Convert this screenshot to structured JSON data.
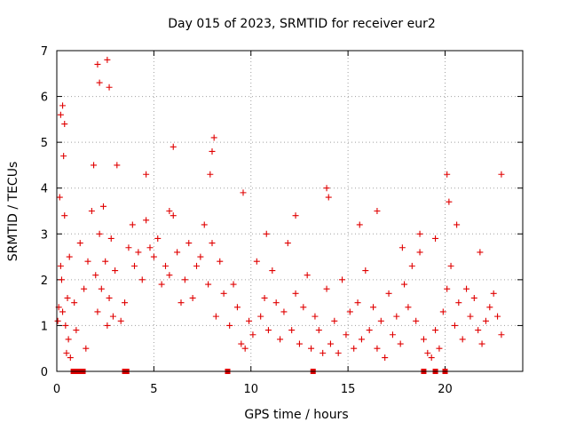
{
  "chart_data": {
    "type": "scatter",
    "title": "Day 015 of 2023, SRMTID for receiver eur2",
    "xlabel": "GPS time / hours",
    "ylabel": "SRMTID / TECUs",
    "xlim": [
      0,
      24
    ],
    "ylim": [
      0,
      7
    ],
    "x_ticks": [
      "0",
      "5",
      "10",
      "15",
      "20"
    ],
    "y_ticks": [
      "0",
      "1",
      "2",
      "3",
      "4",
      "5",
      "6",
      "7"
    ],
    "grid": true,
    "series_color": "#e00000",
    "series": [
      {
        "name": "SRMTID",
        "marker": "plus",
        "x": [
          0.05,
          0.1,
          0.15,
          0.2,
          0.25,
          0.3,
          0.35,
          0.4,
          0.45,
          0.5,
          0.55,
          0.6,
          0.65,
          0.7,
          0.9,
          1.0,
          1.2,
          1.4,
          1.5,
          1.6,
          1.8,
          2.0,
          2.1,
          2.2,
          2.3,
          2.4,
          2.5,
          2.6,
          2.7,
          2.8,
          2.9,
          3.0,
          3.3,
          3.5,
          3.7,
          3.9,
          4.0,
          4.2,
          4.4,
          4.6,
          4.8,
          5.0,
          5.2,
          5.4,
          5.6,
          5.8,
          6.0,
          6.2,
          6.4,
          6.6,
          6.8,
          7.0,
          7.2,
          7.4,
          7.6,
          7.8,
          8.0,
          8.2,
          8.4,
          8.6,
          8.9,
          9.1,
          9.3,
          9.5,
          9.7,
          9.9,
          10.1,
          10.3,
          10.5,
          10.7,
          10.9,
          11.1,
          11.3,
          11.5,
          11.7,
          11.9,
          12.1,
          12.3,
          12.5,
          12.7,
          12.9,
          13.1,
          13.3,
          13.5,
          13.7,
          13.9,
          14.1,
          14.3,
          14.5,
          14.7,
          14.9,
          15.1,
          15.3,
          15.5,
          15.7,
          15.9,
          16.1,
          16.3,
          16.5,
          16.7,
          16.9,
          17.1,
          17.3,
          17.5,
          17.7,
          17.9,
          18.1,
          18.3,
          18.5,
          18.7,
          18.9,
          19.1,
          19.3,
          19.5,
          19.7,
          19.9,
          20.1,
          20.3,
          20.5,
          20.7,
          20.9,
          21.1,
          21.3,
          21.5,
          21.7,
          21.9,
          22.1,
          22.3,
          22.5,
          22.7,
          22.9,
          0.3,
          0.4,
          2.1,
          2.2,
          2.6,
          2.7,
          6.0,
          8.0,
          8.1,
          13.9,
          14.0,
          20.1,
          20.2,
          22.9,
          0.2,
          1.9,
          5.8,
          7.9,
          12.3,
          16.5,
          18.7,
          19.5,
          20.6,
          21.8,
          3.1,
          4.6,
          9.6,
          10.8,
          15.6,
          17.8
        ],
        "y": [
          1.1,
          1.4,
          3.8,
          2.3,
          2.0,
          1.3,
          4.7,
          3.4,
          1.0,
          0.4,
          1.6,
          0.7,
          2.5,
          0.3,
          1.5,
          0.9,
          2.8,
          1.8,
          0.5,
          2.4,
          3.5,
          2.1,
          1.3,
          3.0,
          1.8,
          3.6,
          2.4,
          1.0,
          1.6,
          2.9,
          1.2,
          2.2,
          1.1,
          1.5,
          2.7,
          3.2,
          2.3,
          2.6,
          2.0,
          3.3,
          2.7,
          2.5,
          2.9,
          1.9,
          2.3,
          2.1,
          3.4,
          2.6,
          1.5,
          2.0,
          2.8,
          1.6,
          2.3,
          2.5,
          3.2,
          1.9,
          2.8,
          1.2,
          2.4,
          1.7,
          1.0,
          1.9,
          1.4,
          0.6,
          0.5,
          1.1,
          0.8,
          2.4,
          1.2,
          1.6,
          0.9,
          2.2,
          1.5,
          0.7,
          1.3,
          2.8,
          0.9,
          1.7,
          0.6,
          1.4,
          2.1,
          0.5,
          1.2,
          0.9,
          0.4,
          1.8,
          0.6,
          1.1,
          0.4,
          2.0,
          0.8,
          1.3,
          0.5,
          1.5,
          0.7,
          2.2,
          0.9,
          1.4,
          0.5,
          1.1,
          0.3,
          1.7,
          0.8,
          1.2,
          0.6,
          1.9,
          1.4,
          2.3,
          1.1,
          2.6,
          0.7,
          0.4,
          0.3,
          0.9,
          0.5,
          1.3,
          1.8,
          2.3,
          1.0,
          1.5,
          0.7,
          1.8,
          1.2,
          1.6,
          0.9,
          0.6,
          1.1,
          1.4,
          1.7,
          1.2,
          0.8,
          5.8,
          5.4,
          6.7,
          6.3,
          6.8,
          6.2,
          4.9,
          4.8,
          5.1,
          4.0,
          3.8,
          4.3,
          3.7,
          4.3,
          5.6,
          4.5,
          3.5,
          4.3,
          3.4,
          3.5,
          3.0,
          2.9,
          3.2,
          2.6,
          4.5,
          4.3,
          3.9,
          3.0,
          3.2,
          2.7
        ]
      }
    ],
    "flag_markers": {
      "marker": "square",
      "x": [
        0.85,
        0.95,
        1.2,
        1.35,
        3.5,
        3.6,
        8.8,
        13.2,
        18.9,
        19.5,
        20.0
      ],
      "y": [
        0,
        0,
        0,
        0,
        0,
        0,
        0,
        0,
        0,
        0,
        0
      ]
    }
  }
}
